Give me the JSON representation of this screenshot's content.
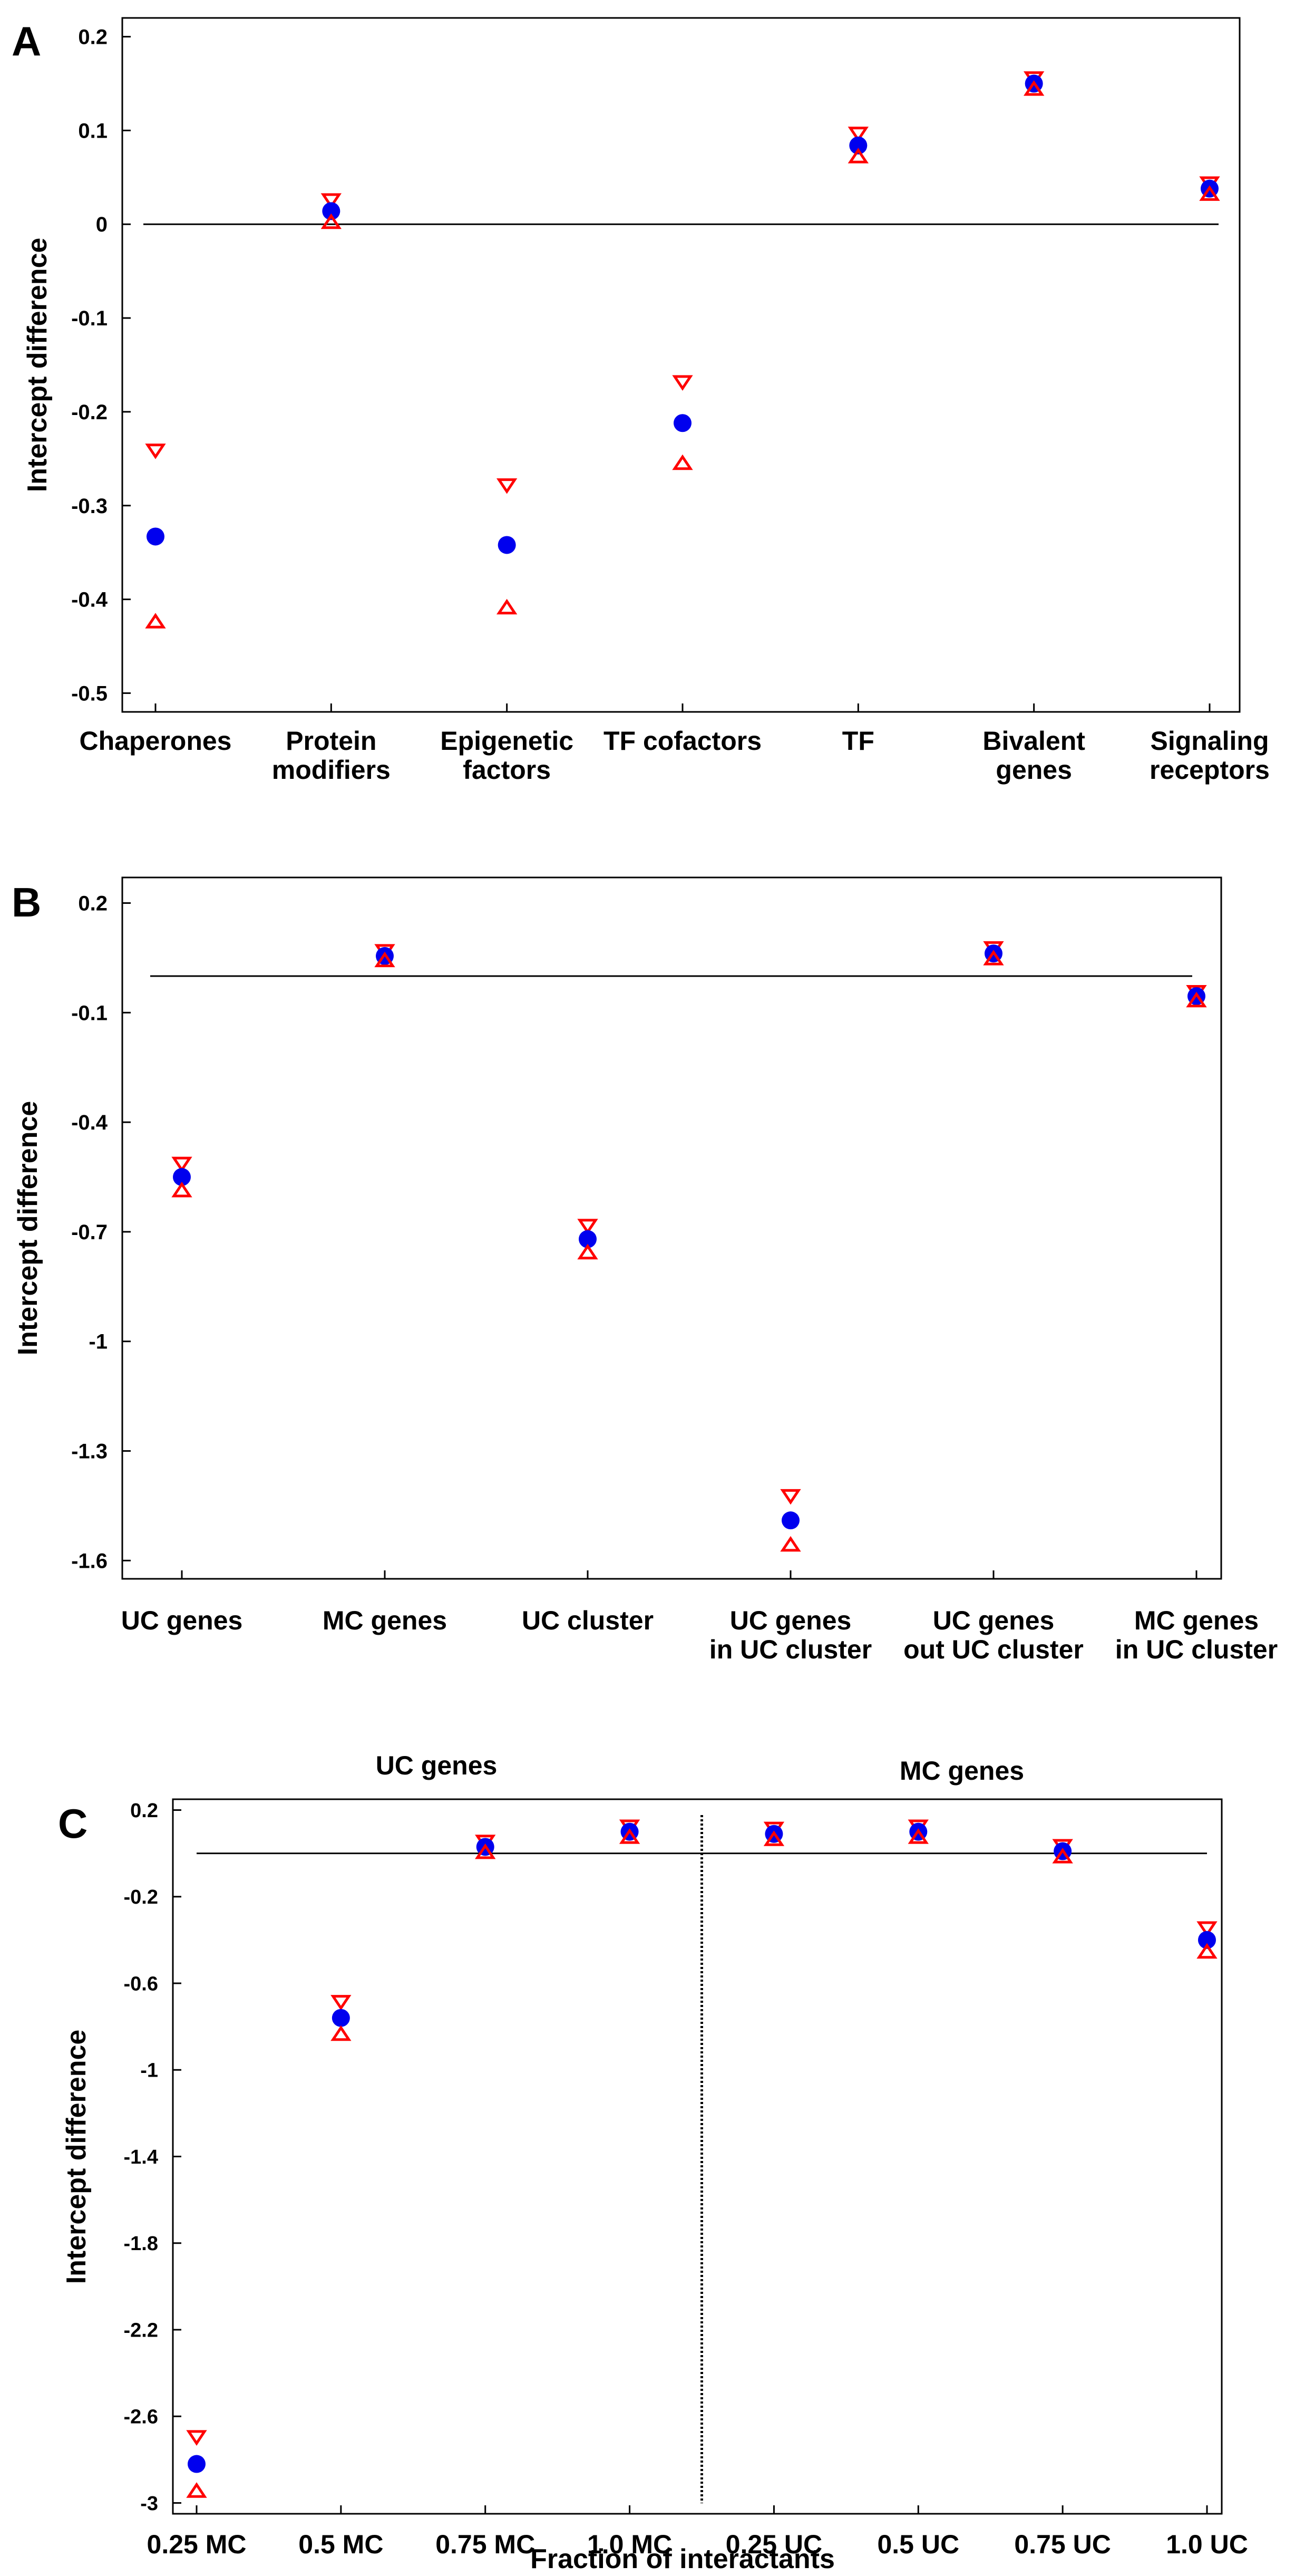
{
  "chart_data": [
    {
      "panel": "A",
      "type": "scatter",
      "ylabel": "Intercept difference",
      "ylim": [
        -0.52,
        0.22
      ],
      "yticks": [
        "0.2",
        "0.1",
        "0",
        "-0.1",
        "-0.2",
        "-0.3",
        "-0.4",
        "-0.5"
      ],
      "yticks_values": [
        0.2,
        0.1,
        0,
        -0.1,
        -0.2,
        -0.3,
        -0.4,
        -0.5
      ],
      "categories": [
        [
          "Chaperones"
        ],
        [
          "Protein",
          "modifiers"
        ],
        [
          "Epigenetic",
          "factors"
        ],
        [
          "TF cofactors"
        ],
        [
          "TF"
        ],
        [
          "Bivalent",
          "genes"
        ],
        [
          "Signaling",
          "receptors"
        ]
      ],
      "series": [
        {
          "name": "upper",
          "marker": "triangle-down",
          "color": "#ff0000",
          "values": [
            -0.24,
            0.027,
            -0.277,
            -0.167,
            0.098,
            0.157,
            0.045
          ]
        },
        {
          "name": "estimate",
          "marker": "circle",
          "color": "#0000ee",
          "values": [
            -0.333,
            0.014,
            -0.342,
            -0.212,
            0.084,
            0.15,
            0.038
          ]
        },
        {
          "name": "lower",
          "marker": "triangle-up",
          "color": "#ff0000",
          "values": [
            -0.425,
            0.001,
            -0.41,
            -0.256,
            0.071,
            0.143,
            0.031
          ]
        }
      ],
      "hline": 0
    },
    {
      "panel": "B",
      "type": "scatter",
      "ylabel": "Intercept difference",
      "ylim": [
        -1.65,
        0.27
      ],
      "yticks": [
        "0.2",
        "-0.1",
        "-0.4",
        "-0.7",
        "-1",
        "-1.3",
        "-1.6"
      ],
      "yticks_values": [
        0.2,
        -0.1,
        -0.4,
        -0.7,
        -1.0,
        -1.3,
        -1.6
      ],
      "categories": [
        [
          "UC genes"
        ],
        [
          "MC genes"
        ],
        [
          "UC cluster"
        ],
        [
          "UC genes",
          "in UC cluster"
        ],
        [
          "UC genes",
          "out UC cluster"
        ],
        [
          "MC genes",
          "in UC cluster"
        ]
      ],
      "series": [
        {
          "name": "upper",
          "marker": "triangle-down",
          "color": "#ff0000",
          "values": [
            -0.51,
            0.072,
            -0.68,
            -1.42,
            0.08,
            -0.04
          ]
        },
        {
          "name": "estimate",
          "marker": "circle",
          "color": "#0000ee",
          "values": [
            -0.55,
            0.055,
            -0.72,
            -1.49,
            0.062,
            -0.055
          ]
        },
        {
          "name": "lower",
          "marker": "triangle-up",
          "color": "#ff0000",
          "values": [
            -0.59,
            0.04,
            -0.76,
            -1.56,
            0.045,
            -0.07
          ]
        }
      ],
      "hline": 0
    },
    {
      "panel": "C",
      "type": "scatter",
      "ylabel": "Intercept difference",
      "xlabel": "Fraction of interactants",
      "ylim": [
        -3.05,
        0.25
      ],
      "yticks": [
        "0.2",
        "-0.2",
        "-0.6",
        "-1",
        "-1.4",
        "-1.8",
        "-2.2",
        "-2.6",
        "-3"
      ],
      "yticks_values": [
        0.2,
        -0.2,
        -0.6,
        -1.0,
        -1.4,
        -1.8,
        -2.2,
        -2.6,
        -3.0
      ],
      "group_labels": [
        "UC genes",
        "MC genes"
      ],
      "categories": [
        [
          "0.25 MC"
        ],
        [
          "0.5 MC"
        ],
        [
          "0.75 MC"
        ],
        [
          "1.0 MC"
        ],
        [
          "0.25 UC"
        ],
        [
          "0.5 UC"
        ],
        [
          "0.75 UC"
        ],
        [
          "1.0 UC"
        ]
      ],
      "series": [
        {
          "name": "upper",
          "marker": "triangle-down",
          "color": "#ff0000",
          "values": [
            -2.69,
            -0.68,
            0.06,
            0.13,
            0.12,
            0.13,
            0.04,
            -0.34
          ]
        },
        {
          "name": "estimate",
          "marker": "circle",
          "color": "#0000ee",
          "values": [
            -2.82,
            -0.76,
            0.03,
            0.1,
            0.09,
            0.1,
            0.01,
            -0.4
          ]
        },
        {
          "name": "lower",
          "marker": "triangle-up",
          "color": "#ff0000",
          "values": [
            -2.95,
            -0.84,
            0.0,
            0.07,
            0.06,
            0.07,
            -0.02,
            -0.46
          ]
        }
      ],
      "hline": 0,
      "vline_after_category": 4
    }
  ]
}
